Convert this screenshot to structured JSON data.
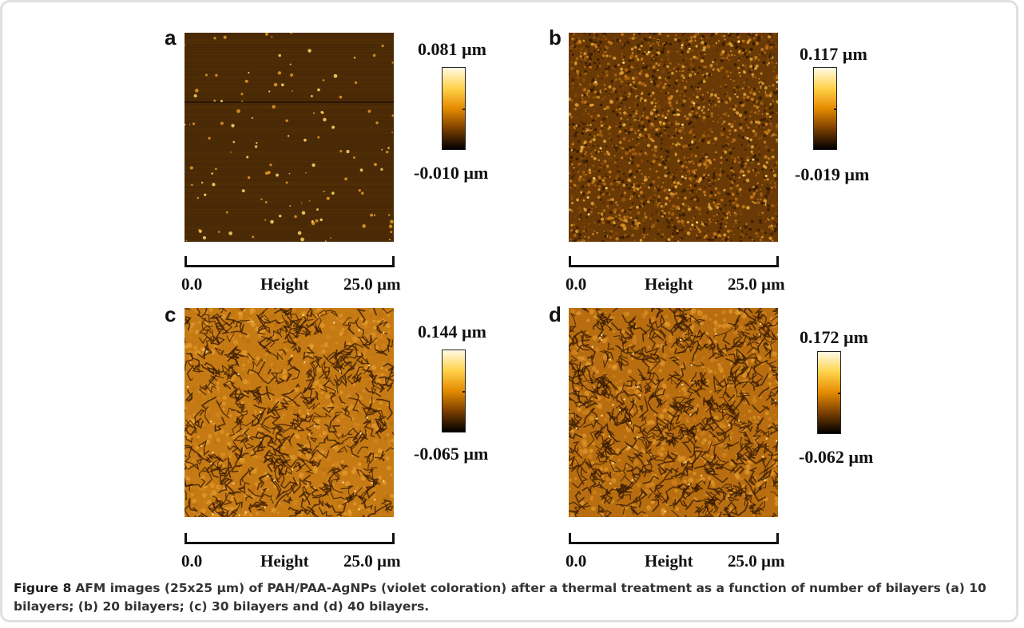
{
  "figure": {
    "panels": [
      {
        "letter": "a",
        "max": "0.081 µm",
        "min": "-0.010 µm",
        "axis_start": "0.0",
        "axis_title": "Height",
        "axis_end": "25.0 µm",
        "texture": "sparse-dots"
      },
      {
        "letter": "b",
        "max": "0.117 µm",
        "min": "-0.019 µm",
        "axis_start": "0.0",
        "axis_title": "Height",
        "axis_end": "25.0 µm",
        "texture": "dense-grains"
      },
      {
        "letter": "c",
        "max": "0.144 µm",
        "min": "-0.065 µm",
        "axis_start": "0.0",
        "axis_title": "Height",
        "axis_end": "25.0 µm",
        "texture": "cracked-film"
      },
      {
        "letter": "d",
        "max": "0.172 µm",
        "min": "-0.062 µm",
        "axis_start": "0.0",
        "axis_title": "Height",
        "axis_end": "25.0 µm",
        "texture": "cracked-film-dense"
      }
    ],
    "colorbar_colors": [
      "#fffbe6",
      "#ffd24a",
      "#e48a00",
      "#7a3e00",
      "#000000"
    ]
  },
  "caption": {
    "label": "Figure 8",
    "text": "AFM images (25x25 µm) of PAH/PAA-AgNPs (violet coloration) after a thermal treatment as a function of number of bilayers (a) 10 bilayers; (b) 20 bilayers; (c) 30 bilayers and (d) 40 bilayers."
  }
}
